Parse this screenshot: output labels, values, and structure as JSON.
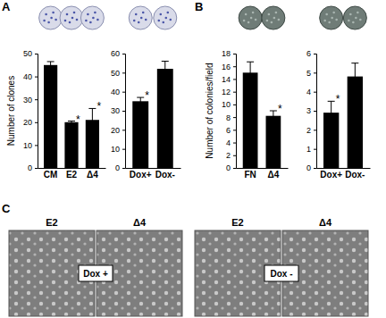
{
  "chart_data": [
    {
      "type": "bar",
      "categories": [
        "CM",
        "E2",
        "Δ4"
      ],
      "values": [
        45,
        20,
        21
      ],
      "errors": [
        1.5,
        0.5,
        5
      ],
      "annotations": [
        null,
        "*",
        "*"
      ],
      "color": "#000000",
      "y_label": "Number of clones",
      "ylim": [
        0,
        50
      ],
      "yticks": [
        0,
        10,
        20,
        30,
        40,
        50
      ]
    },
    {
      "type": "bar",
      "categories": [
        "Dox+",
        "Dox-"
      ],
      "values": [
        35,
        52
      ],
      "errors": [
        2,
        4
      ],
      "annotations": [
        "*",
        null
      ],
      "color": "#000000",
      "ylim": [
        0,
        60
      ],
      "yticks": [
        0,
        10,
        20,
        30,
        40,
        50,
        60
      ]
    },
    {
      "type": "bar",
      "categories": [
        "FN",
        "Δ4"
      ],
      "values": [
        15,
        8.2
      ],
      "errors": [
        1.7,
        0.8
      ],
      "annotations": [
        null,
        "*"
      ],
      "color": "#000000",
      "y_label": "Number of colonies/field",
      "ylim": [
        0,
        18
      ],
      "yticks": [
        0,
        2,
        4,
        6,
        8,
        10,
        12,
        14,
        16,
        18
      ]
    },
    {
      "type": "bar",
      "categories": [
        "Dox+",
        "Dox-"
      ],
      "values": [
        2.9,
        4.8
      ],
      "errors": [
        0.6,
        0.7
      ],
      "annotations": [
        "*",
        null
      ],
      "color": "#000000",
      "ylim": [
        0,
        6
      ],
      "yticks": [
        0,
        1,
        2,
        3,
        4,
        5,
        6
      ]
    }
  ],
  "figure": {
    "panel_labels": [
      "A",
      "B",
      "C"
    ],
    "panel_c": {
      "images": [
        {
          "label": "E2"
        },
        {
          "label": "Δ4"
        },
        {
          "label": "E2"
        },
        {
          "label": "Δ4"
        }
      ],
      "conditions": [
        "Dox +",
        "Dox -"
      ]
    }
  }
}
